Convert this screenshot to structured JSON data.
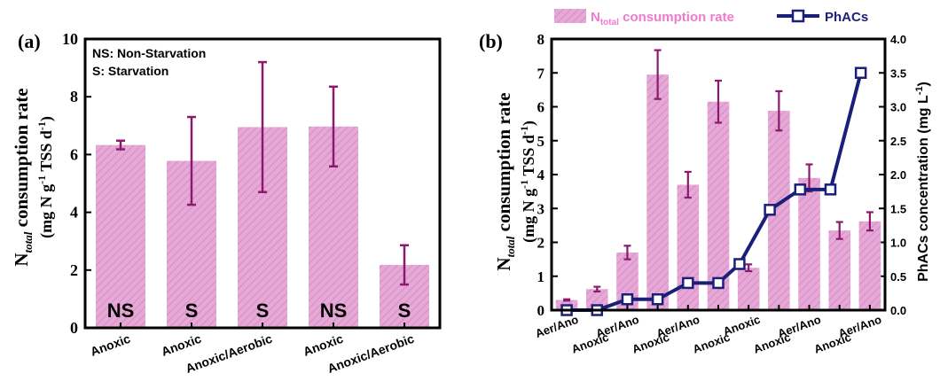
{
  "colors": {
    "bar_fill": "#e7a8d8",
    "bar_hatch": "#c98bbb",
    "error_bar": "#8b1a6b",
    "phacs_line": "#1a1f7a",
    "legend_text_pink": "#f07ad0",
    "legend_text_navy": "#1a1f7a"
  },
  "chart_data": [
    {
      "panel_label": "(a)",
      "type": "bar",
      "ylabel_main": "N",
      "ylabel_sub": "total",
      "ylabel_rest": " consumption rate",
      "ylabel_units_a": "(mg N g",
      "ylabel_units_sup": "-1",
      "ylabel_units_b": " TSS d",
      "ylabel_units_sup2": "-1",
      "ylabel_units_c": ")",
      "ylim": [
        0,
        10
      ],
      "yticks": [
        "0",
        "2",
        "4",
        "6",
        "8",
        "10"
      ],
      "note_line1": "NS: Non-Starvation",
      "note_line2": "S: Starvation",
      "categories": [
        "Anoxic",
        "Anoxic",
        "Anoxic/Aerobic",
        "Anoxic",
        "Anoxic/Aerobic"
      ],
      "bar_labels": [
        "NS",
        "S",
        "S",
        "NS",
        "S"
      ],
      "values": [
        6.33,
        5.78,
        6.95,
        6.97,
        2.18
      ],
      "errors": [
        0.15,
        1.52,
        2.25,
        1.38,
        0.68
      ]
    },
    {
      "panel_label": "(b)",
      "type": "bar+line",
      "ylabel_main": "N",
      "ylabel_sub": "total",
      "ylabel_rest": " consumption rate",
      "ylabel_units_a": "(mg N g",
      "ylabel_units_sup": "-1",
      "ylabel_units_b": " TSS d",
      "ylabel_units_sup2": "-1",
      "ylabel_units_c": ")",
      "ylim": [
        0,
        8
      ],
      "yticks": [
        "0",
        "1",
        "2",
        "3",
        "4",
        "5",
        "6",
        "7",
        "8"
      ],
      "y2label_a": "PhACs concentration (mg L",
      "y2label_sup": "-1",
      "y2label_c": ")",
      "y2lim": [
        0,
        4
      ],
      "y2ticks": [
        "0.0",
        "0.5",
        "1.0",
        "1.5",
        "2.0",
        "2.5",
        "3.0",
        "3.5",
        "4.0"
      ],
      "legend_bar_main": "N",
      "legend_bar_sub": "total",
      "legend_bar_rest": " consumption rate",
      "legend_line": "PhACs",
      "categories": [
        "Aer/Ano",
        "Anoxic",
        "Aer/Ano",
        "Anoxic",
        "Aer/Ano",
        "Anoxic",
        "Anoxic",
        "Anoxic",
        "Aer/Ano",
        "Anoxic",
        "Aer/Ano"
      ],
      "bars": [
        0.3,
        0.62,
        1.7,
        6.95,
        3.7,
        6.15,
        1.25,
        5.88,
        3.9,
        2.35,
        2.62
      ],
      "bar_errors": [
        0.02,
        0.07,
        0.2,
        0.72,
        0.38,
        0.62,
        0.1,
        0.58,
        0.4,
        0.25,
        0.27
      ],
      "line_points": [
        {
          "x": 1,
          "y": 0.0
        },
        {
          "x": 2,
          "y": 0.0
        },
        {
          "x": 3,
          "y": 0.16
        },
        {
          "x": 4,
          "y": 0.16
        },
        {
          "x": 5,
          "y": 0.4
        },
        {
          "x": 6,
          "y": 0.4
        },
        {
          "x": 6.7,
          "y": 0.68
        },
        {
          "x": 7.7,
          "y": 1.48
        },
        {
          "x": 8.7,
          "y": 1.78
        },
        {
          "x": 9.7,
          "y": 1.78
        },
        {
          "x": 10.7,
          "y": 3.5
        }
      ]
    }
  ]
}
